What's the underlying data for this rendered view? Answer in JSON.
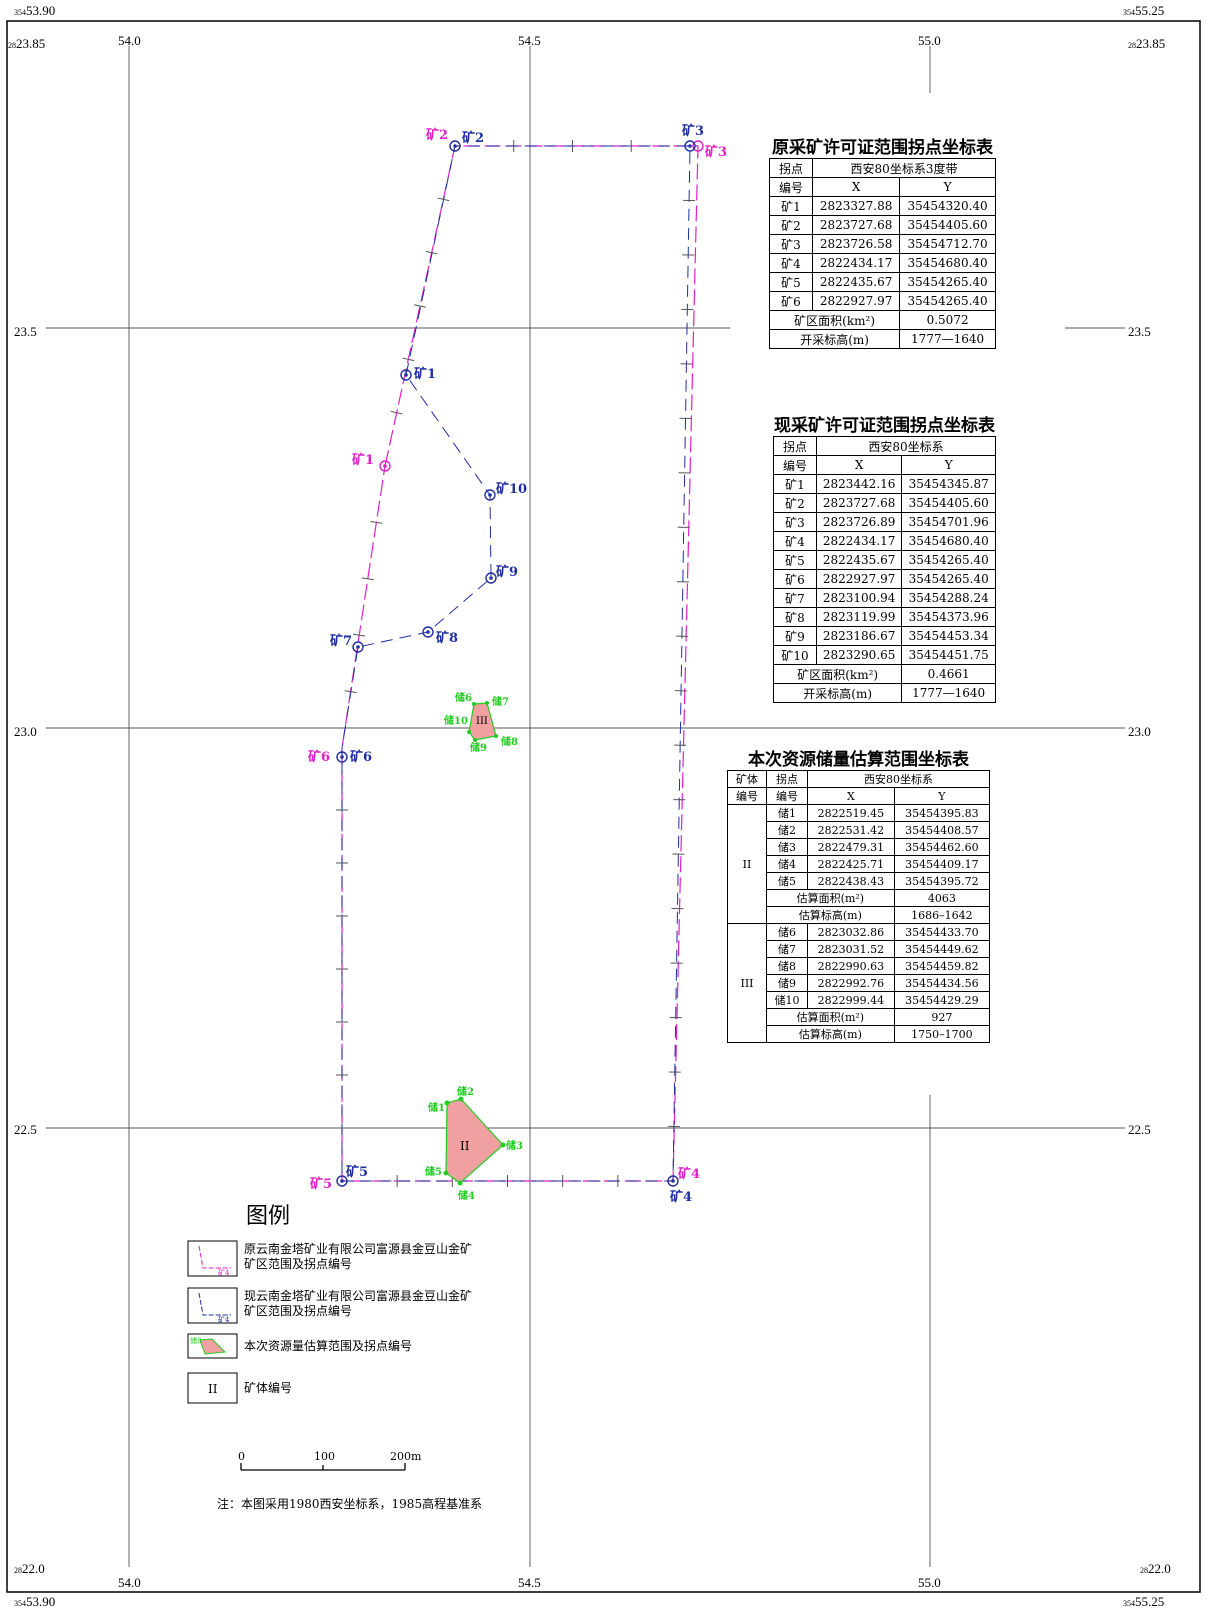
{
  "corners": {
    "tl_x_sup": "354",
    "tl_x": "53.90",
    "tl_y_sup": "28",
    "tl_y": "23.85",
    "tr_x_sup": "354",
    "tr_x": "55.25",
    "tr_y_sup": "28",
    "tr_y": "23.85",
    "bl_y_sup": "28",
    "bl_y": "22.0",
    "bl_x_sup": "354",
    "bl_x": "53.90",
    "br_y_sup": "28",
    "br_y": "22.0",
    "br_x_sup": "354",
    "br_x": "55.25"
  },
  "grid": {
    "x_labels": [
      "54.0",
      "54.5",
      "55.0"
    ],
    "y_labels": [
      "23.5",
      "23.0",
      "22.5"
    ]
  },
  "map_labels": {
    "orig": [
      "矿1",
      "矿2",
      "矿3",
      "矿4",
      "矿5",
      "矿6"
    ],
    "cur": [
      "矿1",
      "矿2",
      "矿3",
      "矿4",
      "矿5",
      "矿6",
      "矿7",
      "矿8",
      "矿9",
      "矿10"
    ],
    "res": [
      "储1",
      "储2",
      "储3",
      "储4",
      "储5",
      "储6",
      "储7",
      "储8",
      "储9",
      "储10"
    ],
    "body_ii": "II",
    "body_iii": "III"
  },
  "table1": {
    "title": "原采矿许可证范围拐点坐标表",
    "h_point": "拐点",
    "h_no": "编号",
    "h_sys": "西安80坐标系3度带",
    "h_x": "X",
    "h_y": "Y",
    "rows": [
      [
        "矿1",
        "2823327.88",
        "35454320.40"
      ],
      [
        "矿2",
        "2823727.68",
        "35454405.60"
      ],
      [
        "矿3",
        "2823726.58",
        "35454712.70"
      ],
      [
        "矿4",
        "2822434.17",
        "35454680.40"
      ],
      [
        "矿5",
        "2822435.67",
        "35454265.40"
      ],
      [
        "矿6",
        "2822927.97",
        "35454265.40"
      ]
    ],
    "area_label": "矿区面积(km²)",
    "area_value": "0.5072",
    "elev_label": "开采标高(m)",
    "elev_value": "1777—1640"
  },
  "table2": {
    "title": "现采矿许可证范围拐点坐标表",
    "h_point": "拐点",
    "h_no": "编号",
    "h_sys": "西安80坐标系",
    "h_x": "X",
    "h_y": "Y",
    "rows": [
      [
        "矿1",
        "2823442.16",
        "35454345.87"
      ],
      [
        "矿2",
        "2823727.68",
        "35454405.60"
      ],
      [
        "矿3",
        "2823726.89",
        "35454701.96"
      ],
      [
        "矿4",
        "2822434.17",
        "35454680.40"
      ],
      [
        "矿5",
        "2822435.67",
        "35454265.40"
      ],
      [
        "矿6",
        "2822927.97",
        "35454265.40"
      ],
      [
        "矿7",
        "2823100.94",
        "35454288.24"
      ],
      [
        "矿8",
        "2823119.99",
        "35454373.96"
      ],
      [
        "矿9",
        "2823186.67",
        "35454453.34"
      ],
      [
        "矿10",
        "2823290.65",
        "35454451.75"
      ]
    ],
    "area_label": "矿区面积(km²)",
    "area_value": "0.4661",
    "elev_label": "开采标高(m)",
    "elev_value": "1777—1640"
  },
  "table3": {
    "title": "本次资源储量估算范围坐标表",
    "h_body": "矿体",
    "h_bodyno": "编号",
    "h_point": "拐点",
    "h_no": "编号",
    "h_sys": "西安80坐标系",
    "h_x": "X",
    "h_y": "Y",
    "g1_name": "II",
    "g1_rows": [
      [
        "储1",
        "2822519.45",
        "35454395.83"
      ],
      [
        "储2",
        "2822531.42",
        "35454408.57"
      ],
      [
        "储3",
        "2822479.31",
        "35454462.60"
      ],
      [
        "储4",
        "2822425.71",
        "35454409.17"
      ],
      [
        "储5",
        "2822438.43",
        "35454395.72"
      ]
    ],
    "g1_area_label": "估算面积(m²)",
    "g1_area": "4063",
    "g1_elev_label": "估算标高(m)",
    "g1_elev": "1686–1642",
    "g2_name": "III",
    "g2_rows": [
      [
        "储6",
        "2823032.86",
        "35454433.70"
      ],
      [
        "储7",
        "2823031.52",
        "35454449.62"
      ],
      [
        "储8",
        "2822990.63",
        "35454459.82"
      ],
      [
        "储9",
        "2822992.76",
        "35454434.56"
      ],
      [
        "储10",
        "2822999.44",
        "35454429.29"
      ]
    ],
    "g2_area_label": "估算面积(m²)",
    "g2_area": "927",
    "g2_elev_label": "估算标高(m)",
    "g2_elev": "1750–1700"
  },
  "legend": {
    "title": "图例",
    "item1_line1": "原云南金塔矿业有限公司富源县金豆山金矿",
    "item1_line2": "矿区范围及拐点编号",
    "item1_sym": "矿4",
    "item2_line1": "现云南金塔矿业有限公司富源县金豆山金矿",
    "item2_line2": "矿区范围及拐点编号",
    "item2_sym": "矿4",
    "item3": "本次资源量估算范围及拐点编号",
    "item3_sym": "储8",
    "item4": "矿体编号",
    "item4_sym": "II"
  },
  "scale": {
    "t0": "0",
    "t1": "100",
    "t2": "200m"
  },
  "note": "注：本图采用1980西安坐标系，1985高程基准系",
  "colors": {
    "orig": "#e020c8",
    "cur": "#1f2fa0",
    "resource": "#22cc22",
    "fill": "#f0a0a0"
  }
}
